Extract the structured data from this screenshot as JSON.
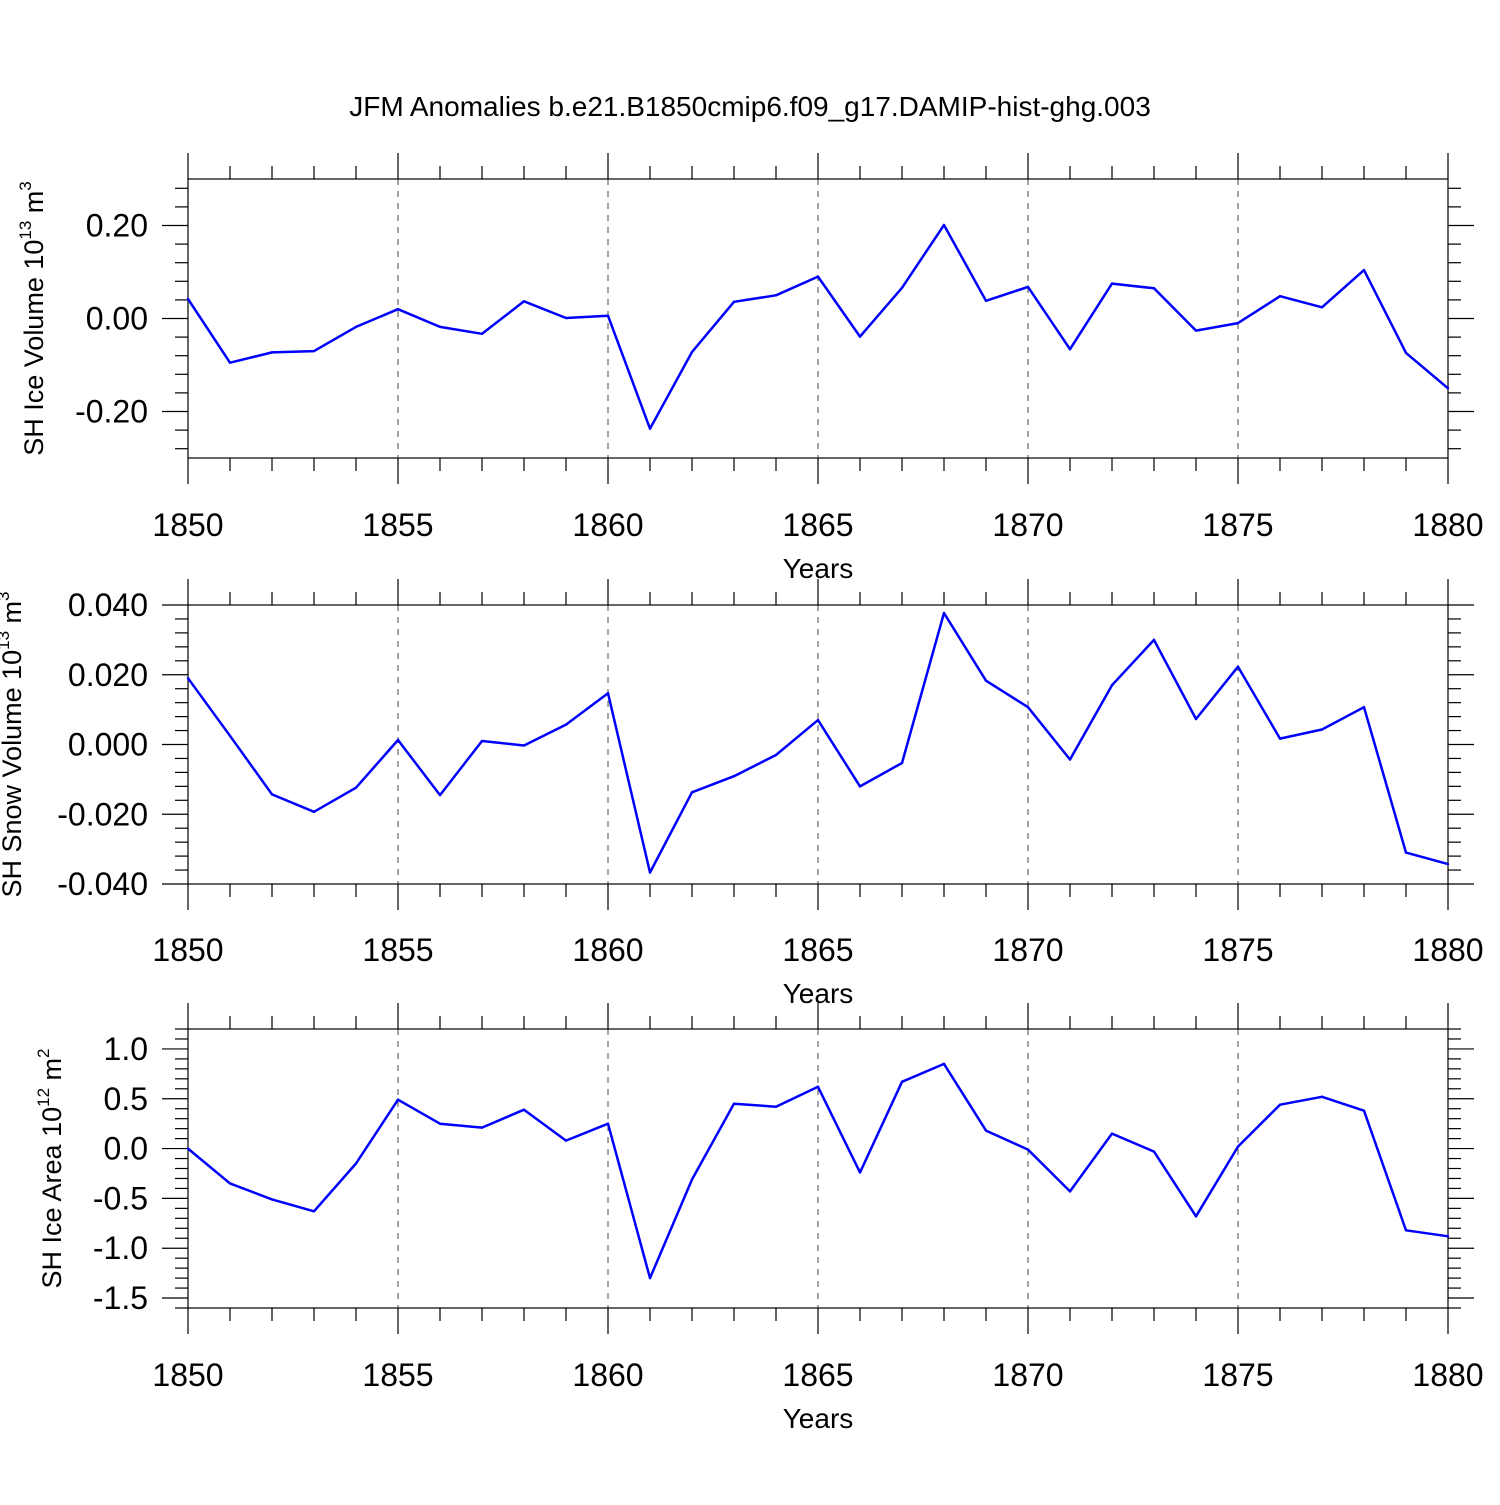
{
  "title": "JFM Anomalies b.e21.B1850cmip6.f09_g17.DAMIP-hist-ghg.003",
  "colors": {
    "line": "#0000ff",
    "axis": "#000000",
    "grid": "#000000"
  },
  "chart_data": [
    {
      "type": "line",
      "ylabel": {
        "main": "SH Ice Volume 10",
        "exp": "13",
        "unit": " m",
        "unit_exp": "3"
      },
      "xlabel": "Years",
      "xlim": [
        1850,
        1880
      ],
      "ylim": [
        -0.3,
        0.3
      ],
      "yticks": [
        -0.2,
        0.0,
        0.2
      ],
      "ytick_labels": [
        "-0.20",
        "0.00",
        "0.20"
      ],
      "xticks": [
        1850,
        1855,
        1860,
        1865,
        1870,
        1875,
        1880
      ],
      "xtick_labels": [
        "1850",
        "1855",
        "1860",
        "1865",
        "1870",
        "1875",
        "1880"
      ],
      "grid": "vertical dashed at major x ticks",
      "x": [
        1850,
        1851,
        1852,
        1853,
        1854,
        1855,
        1856,
        1857,
        1858,
        1859,
        1860,
        1861,
        1862,
        1863,
        1864,
        1865,
        1866,
        1867,
        1868,
        1869,
        1870,
        1871,
        1872,
        1873,
        1874,
        1875,
        1876,
        1877,
        1878,
        1879,
        1880
      ],
      "values": [
        0.042,
        -0.095,
        -0.073,
        -0.07,
        -0.018,
        0.02,
        -0.018,
        -0.033,
        0.037,
        0.001,
        0.006,
        -0.237,
        -0.072,
        0.036,
        0.05,
        0.09,
        -0.039,
        0.066,
        0.201,
        0.038,
        0.068,
        -0.066,
        0.075,
        0.065,
        -0.026,
        -0.01,
        0.048,
        0.024,
        0.104,
        -0.074,
        -0.15
      ]
    },
    {
      "type": "line",
      "ylabel": {
        "main": "SH Snow Volume 10",
        "exp": "13",
        "unit": " m",
        "unit_exp": "3"
      },
      "xlabel": "Years",
      "xlim": [
        1850,
        1880
      ],
      "ylim": [
        -0.04,
        0.04
      ],
      "yticks": [
        -0.04,
        -0.02,
        0.0,
        0.02,
        0.04
      ],
      "ytick_labels": [
        "-0.040",
        "-0.020",
        "0.000",
        "0.020",
        "0.040"
      ],
      "xticks": [
        1850,
        1855,
        1860,
        1865,
        1870,
        1875,
        1880
      ],
      "xtick_labels": [
        "1850",
        "1855",
        "1860",
        "1865",
        "1870",
        "1875",
        "1880"
      ],
      "grid": "vertical dashed at major x ticks",
      "x": [
        1850,
        1851,
        1852,
        1853,
        1854,
        1855,
        1856,
        1857,
        1858,
        1859,
        1860,
        1861,
        1862,
        1863,
        1864,
        1865,
        1866,
        1867,
        1868,
        1869,
        1870,
        1871,
        1872,
        1873,
        1874,
        1875,
        1876,
        1877,
        1878,
        1879,
        1880
      ],
      "values": [
        0.019,
        0.0025,
        -0.0143,
        -0.0193,
        -0.0124,
        0.0013,
        -0.0145,
        0.001,
        -0.0003,
        0.0057,
        0.0147,
        -0.0367,
        -0.0137,
        -0.0091,
        -0.003,
        0.007,
        -0.012,
        -0.0053,
        0.0377,
        0.0183,
        0.0107,
        -0.0043,
        0.017,
        0.03,
        0.0073,
        0.0223,
        0.0017,
        0.0043,
        0.0107,
        -0.031,
        -0.0343
      ]
    },
    {
      "type": "line",
      "ylabel": {
        "main": "SH Ice Area 10",
        "exp": "12",
        "unit": " m",
        "unit_exp": "2"
      },
      "xlabel": "Years",
      "xlim": [
        1850,
        1880
      ],
      "ylim": [
        -1.6,
        1.2
      ],
      "yticks": [
        -1.5,
        -1.0,
        -0.5,
        0.0,
        0.5,
        1.0
      ],
      "ytick_labels": [
        "-1.5",
        "-1.0",
        "-0.5",
        "0.0",
        "0.5",
        "1.0"
      ],
      "xticks": [
        1850,
        1855,
        1860,
        1865,
        1870,
        1875,
        1880
      ],
      "xtick_labels": [
        "1850",
        "1855",
        "1860",
        "1865",
        "1870",
        "1875",
        "1880"
      ],
      "grid": "vertical dashed at major x ticks",
      "x": [
        1850,
        1851,
        1852,
        1853,
        1854,
        1855,
        1856,
        1857,
        1858,
        1859,
        1860,
        1861,
        1862,
        1863,
        1864,
        1865,
        1866,
        1867,
        1868,
        1869,
        1870,
        1871,
        1872,
        1873,
        1874,
        1875,
        1876,
        1877,
        1878,
        1879,
        1880
      ],
      "values": [
        0.0,
        -0.35,
        -0.51,
        -0.63,
        -0.15,
        0.49,
        0.25,
        0.21,
        0.39,
        0.08,
        0.25,
        -1.3,
        -0.31,
        0.45,
        0.42,
        0.62,
        -0.24,
        0.67,
        0.85,
        0.18,
        -0.01,
        -0.43,
        0.15,
        -0.03,
        -0.68,
        0.02,
        0.44,
        0.52,
        0.38,
        -0.82,
        -0.88
      ]
    }
  ]
}
